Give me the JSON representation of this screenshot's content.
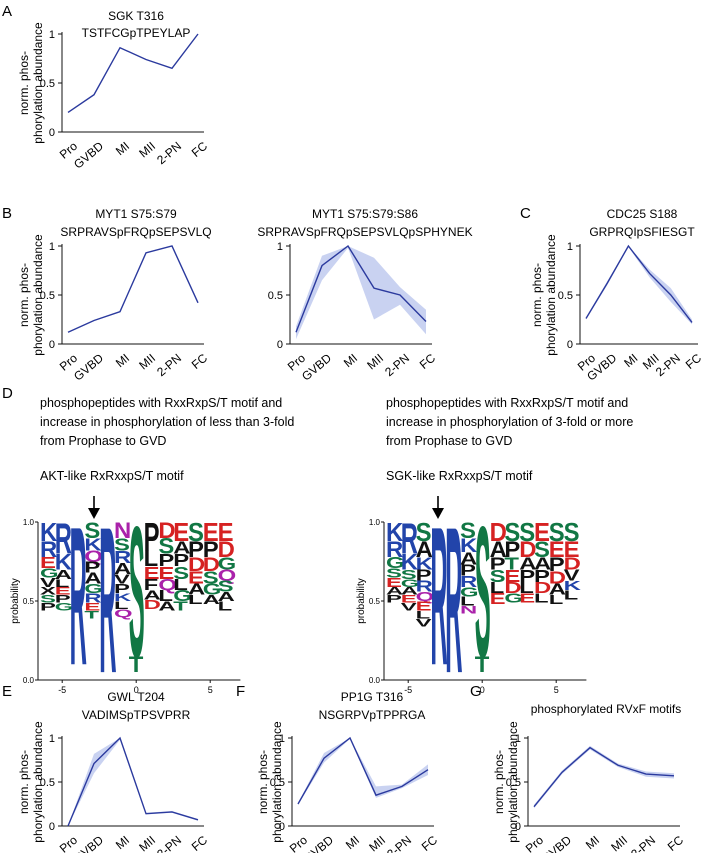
{
  "panel_letters": [
    "A",
    "B",
    "C",
    "D",
    "E",
    "F",
    "G"
  ],
  "ylabel_line1": "norm. phos-",
  "ylabel_line2": "phorylation abundance",
  "stages": [
    "Pro",
    "GVBD",
    "MI",
    "MII",
    "2-PN",
    "FC"
  ],
  "yticks": [
    "0",
    "0.5",
    "1"
  ],
  "logo_ylabel": "probability",
  "logo_xticks": [
    "-5",
    "0",
    "5"
  ],
  "logo_left": {
    "desc": [
      "phosphopeptides with RxxRxpS/T motif and",
      "increase in phosphorylation of less than 3-fold",
      "from Prophase to GVD"
    ],
    "motif": "AKT-like RxRxxpS/T motif",
    "positions": [
      {
        "pos": -6,
        "stack": [
          [
            "K",
            0.12,
            "#2244aa"
          ],
          [
            "R",
            0.1,
            "#2244aa"
          ],
          [
            "E",
            0.07,
            "#d62222"
          ],
          [
            "G",
            0.06,
            "#117744"
          ],
          [
            "V",
            0.06,
            "#111111"
          ],
          [
            "X",
            0.05,
            "#111111"
          ],
          [
            "S",
            0.05,
            "#117744"
          ],
          [
            "P",
            0.05,
            "#111111"
          ]
        ]
      },
      {
        "pos": -5,
        "stack": [
          [
            "R",
            0.2,
            "#2244aa"
          ],
          [
            "K",
            0.1,
            "#2244aa"
          ],
          [
            "A",
            0.06,
            "#111111"
          ],
          [
            "L",
            0.05,
            "#111111"
          ],
          [
            "E",
            0.05,
            "#d62222"
          ],
          [
            "P",
            0.05,
            "#111111"
          ],
          [
            "G",
            0.05,
            "#117744"
          ]
        ]
      },
      {
        "pos": -4,
        "stack": [
          [
            "R",
            0.9,
            "#2244aa"
          ]
        ]
      },
      {
        "pos": -3,
        "stack": [
          [
            "S",
            0.1,
            "#117744"
          ],
          [
            "K",
            0.08,
            "#2244aa"
          ],
          [
            "Q",
            0.07,
            "#aa22aa"
          ],
          [
            "P",
            0.07,
            "#111111"
          ],
          [
            "A",
            0.07,
            "#111111"
          ],
          [
            "G",
            0.06,
            "#117744"
          ],
          [
            "R",
            0.06,
            "#2244aa"
          ],
          [
            "E",
            0.05,
            "#d62222"
          ],
          [
            "T",
            0.05,
            "#117744"
          ]
        ]
      },
      {
        "pos": -2,
        "stack": [
          [
            "R",
            0.95,
            "#2244aa"
          ]
        ]
      },
      {
        "pos": -1,
        "stack": [
          [
            "N",
            0.1,
            "#aa22aa"
          ],
          [
            "S",
            0.08,
            "#117744"
          ],
          [
            "R",
            0.08,
            "#2244aa"
          ],
          [
            "A",
            0.07,
            "#111111"
          ],
          [
            "V",
            0.06,
            "#111111"
          ],
          [
            "P",
            0.06,
            "#111111"
          ],
          [
            "K",
            0.05,
            "#2244aa"
          ],
          [
            "L",
            0.05,
            "#111111"
          ],
          [
            "Q",
            0.05,
            "#aa22aa"
          ]
        ]
      },
      {
        "pos": 0,
        "stack": [
          [
            "S",
            0.85,
            "#117744"
          ],
          [
            "T",
            0.1,
            "#117744"
          ]
        ]
      },
      {
        "pos": 1,
        "stack": [
          [
            "P",
            0.18,
            "#111111"
          ],
          [
            "L",
            0.1,
            "#111111"
          ],
          [
            "E",
            0.08,
            "#d62222"
          ],
          [
            "F",
            0.07,
            "#111111"
          ],
          [
            "A",
            0.06,
            "#111111"
          ],
          [
            "D",
            0.06,
            "#d62222"
          ]
        ]
      },
      {
        "pos": 2,
        "stack": [
          [
            "D",
            0.1,
            "#d62222"
          ],
          [
            "S",
            0.1,
            "#117744"
          ],
          [
            "P",
            0.08,
            "#111111"
          ],
          [
            "E",
            0.08,
            "#d62222"
          ],
          [
            "Q",
            0.07,
            "#aa22aa"
          ],
          [
            "L",
            0.07,
            "#111111"
          ],
          [
            "A",
            0.06,
            "#111111"
          ]
        ]
      },
      {
        "pos": 3,
        "stack": [
          [
            "E",
            0.12,
            "#d62222"
          ],
          [
            "A",
            0.08,
            "#111111"
          ],
          [
            "P",
            0.08,
            "#111111"
          ],
          [
            "S",
            0.08,
            "#117744"
          ],
          [
            "L",
            0.07,
            "#111111"
          ],
          [
            "G",
            0.07,
            "#117744"
          ],
          [
            "T",
            0.06,
            "#117744"
          ]
        ]
      },
      {
        "pos": 4,
        "stack": [
          [
            "S",
            0.12,
            "#117744"
          ],
          [
            "P",
            0.1,
            "#111111"
          ],
          [
            "D",
            0.09,
            "#d62222"
          ],
          [
            "E",
            0.08,
            "#d62222"
          ],
          [
            "A",
            0.07,
            "#111111"
          ],
          [
            "L",
            0.06,
            "#111111"
          ]
        ]
      },
      {
        "pos": 5,
        "stack": [
          [
            "E",
            0.12,
            "#d62222"
          ],
          [
            "P",
            0.1,
            "#111111"
          ],
          [
            "D",
            0.09,
            "#d62222"
          ],
          [
            "S",
            0.08,
            "#117744"
          ],
          [
            "G",
            0.07,
            "#117744"
          ],
          [
            "A",
            0.06,
            "#111111"
          ]
        ]
      },
      {
        "pos": 6,
        "stack": [
          [
            "E",
            0.12,
            "#d62222"
          ],
          [
            "D",
            0.1,
            "#d62222"
          ],
          [
            "G",
            0.08,
            "#117744"
          ],
          [
            "Q",
            0.07,
            "#aa22aa"
          ],
          [
            "S",
            0.07,
            "#117744"
          ],
          [
            "A",
            0.06,
            "#111111"
          ],
          [
            "L",
            0.06,
            "#111111"
          ]
        ]
      }
    ]
  },
  "logo_right": {
    "desc": [
      "phosphopeptides with RxxRxpS/T motif and",
      "increase in phosphorylation of 3-fold or more",
      "from Prophase to GVD"
    ],
    "motif": "SGK-like RxRxxpS/T motif",
    "positions": [
      {
        "pos": -6,
        "stack": [
          [
            "K",
            0.12,
            "#2244aa"
          ],
          [
            "R",
            0.1,
            "#2244aa"
          ],
          [
            "G",
            0.07,
            "#117744"
          ],
          [
            "S",
            0.06,
            "#117744"
          ],
          [
            "E",
            0.06,
            "#d62222"
          ],
          [
            "A",
            0.05,
            "#111111"
          ],
          [
            "P",
            0.05,
            "#111111"
          ]
        ]
      },
      {
        "pos": -5,
        "stack": [
          [
            "R",
            0.2,
            "#2244aa"
          ],
          [
            "K",
            0.1,
            "#2244aa"
          ],
          [
            "S",
            0.06,
            "#117744"
          ],
          [
            "G",
            0.05,
            "#117744"
          ],
          [
            "A",
            0.05,
            "#111111"
          ],
          [
            "E",
            0.05,
            "#d62222"
          ],
          [
            "V",
            0.05,
            "#111111"
          ]
        ]
      },
      {
        "pos": -4,
        "stack": [
          [
            "S",
            0.12,
            "#117744"
          ],
          [
            "A",
            0.1,
            "#111111"
          ],
          [
            "K",
            0.08,
            "#2244aa"
          ],
          [
            "P",
            0.07,
            "#111111"
          ],
          [
            "R",
            0.07,
            "#2244aa"
          ],
          [
            "Q",
            0.06,
            "#aa22aa"
          ],
          [
            "E",
            0.06,
            "#d62222"
          ],
          [
            "L",
            0.05,
            "#111111"
          ],
          [
            "V",
            0.05,
            "#111111"
          ]
        ]
      },
      {
        "pos": -3,
        "stack": [
          [
            "R",
            0.9,
            "#2244aa"
          ]
        ]
      },
      {
        "pos": -2,
        "stack": [
          [
            "R",
            0.95,
            "#2244aa"
          ]
        ]
      },
      {
        "pos": -1,
        "stack": [
          [
            "S",
            0.1,
            "#117744"
          ],
          [
            "K",
            0.09,
            "#2244aa"
          ],
          [
            "A",
            0.08,
            "#111111"
          ],
          [
            "P",
            0.07,
            "#111111"
          ],
          [
            "R",
            0.07,
            "#2244aa"
          ],
          [
            "G",
            0.06,
            "#117744"
          ],
          [
            "L",
            0.06,
            "#111111"
          ],
          [
            "N",
            0.05,
            "#aa22aa"
          ]
        ]
      },
      {
        "pos": 0,
        "stack": [
          [
            "S",
            0.85,
            "#117744"
          ],
          [
            "T",
            0.1,
            "#117744"
          ]
        ]
      },
      {
        "pos": 1,
        "stack": [
          [
            "D",
            0.12,
            "#d62222"
          ],
          [
            "A",
            0.1,
            "#111111"
          ],
          [
            "P",
            0.08,
            "#111111"
          ],
          [
            "S",
            0.08,
            "#117744"
          ],
          [
            "L",
            0.07,
            "#111111"
          ],
          [
            "E",
            0.07,
            "#d62222"
          ]
        ]
      },
      {
        "pos": 2,
        "stack": [
          [
            "S",
            0.12,
            "#117744"
          ],
          [
            "P",
            0.1,
            "#111111"
          ],
          [
            "T",
            0.08,
            "#117744"
          ],
          [
            "E",
            0.08,
            "#d62222"
          ],
          [
            "D",
            0.07,
            "#d62222"
          ],
          [
            "G",
            0.06,
            "#117744"
          ]
        ]
      },
      {
        "pos": 3,
        "stack": [
          [
            "S",
            0.12,
            "#117744"
          ],
          [
            "D",
            0.1,
            "#d62222"
          ],
          [
            "A",
            0.08,
            "#111111"
          ],
          [
            "P",
            0.08,
            "#111111"
          ],
          [
            "L",
            0.07,
            "#111111"
          ],
          [
            "E",
            0.06,
            "#d62222"
          ]
        ]
      },
      {
        "pos": 4,
        "stack": [
          [
            "E",
            0.12,
            "#d62222"
          ],
          [
            "S",
            0.1,
            "#117744"
          ],
          [
            "A",
            0.08,
            "#111111"
          ],
          [
            "P",
            0.08,
            "#111111"
          ],
          [
            "D",
            0.07,
            "#d62222"
          ],
          [
            "L",
            0.06,
            "#111111"
          ]
        ]
      },
      {
        "pos": 5,
        "stack": [
          [
            "S",
            0.12,
            "#117744"
          ],
          [
            "E",
            0.1,
            "#d62222"
          ],
          [
            "P",
            0.09,
            "#111111"
          ],
          [
            "D",
            0.08,
            "#d62222"
          ],
          [
            "A",
            0.07,
            "#111111"
          ],
          [
            "L",
            0.06,
            "#111111"
          ]
        ]
      },
      {
        "pos": 6,
        "stack": [
          [
            "S",
            0.12,
            "#117744"
          ],
          [
            "E",
            0.1,
            "#d62222"
          ],
          [
            "D",
            0.08,
            "#d62222"
          ],
          [
            "V",
            0.07,
            "#111111"
          ],
          [
            "K",
            0.06,
            "#2244aa"
          ],
          [
            "L",
            0.06,
            "#111111"
          ]
        ]
      }
    ]
  },
  "colors": {
    "line": "#2b3a9e",
    "band": "#c3cdf0",
    "axis": "#111111"
  },
  "chart_data": [
    {
      "type": "line",
      "panel": "A",
      "title": [
        "SGK T316",
        "TSTFCGpTPEYLAP"
      ],
      "categories": [
        "Pro",
        "GVBD",
        "MI",
        "MII",
        "2-PN",
        "FC"
      ],
      "values": [
        0.2,
        0.38,
        0.86,
        0.74,
        0.65,
        1.0
      ],
      "ylim": [
        0,
        1
      ],
      "band": null
    },
    {
      "type": "line",
      "panel": "B",
      "title": [
        "MYT1 S75:S79",
        "SRPRAVSpFRQpSEPSVLQ"
      ],
      "categories": [
        "Pro",
        "GVBD",
        "MI",
        "MII",
        "2-PN",
        "FC"
      ],
      "values": [
        0.12,
        0.24,
        0.33,
        0.93,
        1.0,
        0.42
      ],
      "ylim": [
        0,
        1
      ],
      "band": null
    },
    {
      "type": "line",
      "panel": "B",
      "title": [
        "MYT1 S75:S79:S86",
        "SRPRAVSpFRQpSEPSVLQpSPHYNEK"
      ],
      "categories": [
        "Pro",
        "GVBD",
        "MI",
        "MII",
        "2-PN",
        "FC"
      ],
      "values": [
        0.12,
        0.8,
        1.0,
        0.57,
        0.5,
        0.23
      ],
      "ylim": [
        0,
        1
      ],
      "band": {
        "lower": [
          0.05,
          0.65,
          0.98,
          0.25,
          0.4,
          0.1
        ],
        "upper": [
          0.18,
          0.9,
          1.0,
          0.88,
          0.58,
          0.35
        ]
      }
    },
    {
      "type": "line",
      "panel": "C",
      "title": [
        "CDC25 S188",
        "GRPRQIpSFIESGT"
      ],
      "categories": [
        "Pro",
        "GVBD",
        "MI",
        "MII",
        "2-PN",
        "FC"
      ],
      "values": [
        0.26,
        0.62,
        1.0,
        0.72,
        0.5,
        0.22
      ],
      "ylim": [
        0,
        1
      ],
      "band": {
        "lower": [
          0.25,
          0.6,
          0.99,
          0.68,
          0.43,
          0.2
        ],
        "upper": [
          0.27,
          0.64,
          1.0,
          0.76,
          0.57,
          0.25
        ]
      }
    },
    {
      "type": "line",
      "panel": "E",
      "title": [
        "GWL T204",
        "VADIMSpTPSVPRR"
      ],
      "categories": [
        "Pro",
        "GVBD",
        "MI",
        "MII",
        "2-PN",
        "FC"
      ],
      "values": [
        0.0,
        0.71,
        1.0,
        0.14,
        0.16,
        0.07
      ],
      "ylim": [
        0,
        1
      ],
      "band": {
        "lower": [
          0.0,
          0.6,
          0.98,
          0.13,
          0.15,
          0.06
        ],
        "upper": [
          0.0,
          0.82,
          1.0,
          0.15,
          0.17,
          0.08
        ]
      }
    },
    {
      "type": "line",
      "panel": "F",
      "title": [
        "PP1G T316",
        "NSGRPVpTPPRGA"
      ],
      "categories": [
        "Pro",
        "GVBD",
        "MI",
        "MII",
        "2-PN",
        "FC"
      ],
      "values": [
        0.25,
        0.77,
        1.0,
        0.35,
        0.45,
        0.64
      ],
      "ylim": [
        0,
        1
      ],
      "band": {
        "lower": [
          0.24,
          0.72,
          0.99,
          0.32,
          0.43,
          0.58
        ],
        "upper": [
          0.26,
          0.83,
          1.0,
          0.45,
          0.47,
          0.7
        ]
      }
    },
    {
      "type": "line",
      "panel": "G",
      "title": [
        "phosphorylated RVxF motifs"
      ],
      "categories": [
        "Pro",
        "GVBD",
        "MI",
        "MII",
        "2-PN",
        "FC"
      ],
      "values": [
        0.22,
        0.61,
        0.89,
        0.69,
        0.59,
        0.57
      ],
      "ylim": [
        0,
        1
      ],
      "band": {
        "lower": [
          0.2,
          0.59,
          0.87,
          0.67,
          0.56,
          0.54
        ],
        "upper": [
          0.24,
          0.63,
          0.91,
          0.71,
          0.62,
          0.6
        ]
      }
    }
  ]
}
